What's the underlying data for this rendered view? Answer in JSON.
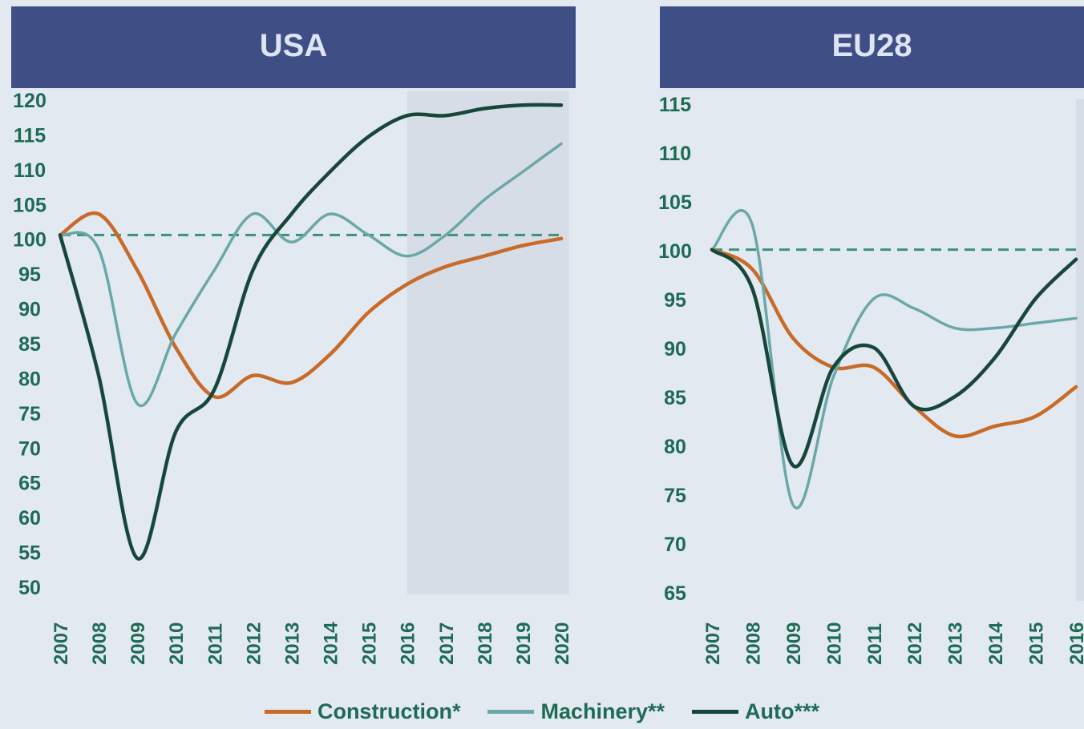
{
  "colors": {
    "background": "#e3e9f1",
    "header_bg": "#3f4f86",
    "header_text": "#dfe4f5",
    "tick_text": "#1e6b55",
    "forecast_shade": "#d7dde7",
    "baseline": "#3f8f7e"
  },
  "legend": [
    {
      "label": "Construction*",
      "color": "#c86a28"
    },
    {
      "label": "Machinery**",
      "color": "#6aa8a8"
    },
    {
      "label": "Auto***",
      "color": "#17463a"
    }
  ],
  "chart_data": [
    {
      "type": "line",
      "title": "USA",
      "x": [
        2007,
        2008,
        2009,
        2010,
        2011,
        2012,
        2013,
        2014,
        2015,
        2016,
        2017,
        2018,
        2019,
        2020
      ],
      "xticks": [
        "2007",
        "2008",
        "2009",
        "2010",
        "2011",
        "2012",
        "2013",
        "2014",
        "2015",
        "2016",
        "2017",
        "2018",
        "2019",
        "2020"
      ],
      "yticks": [
        "120",
        "115",
        "110",
        "105",
        "100",
        "95",
        "90",
        "85",
        "80",
        "75",
        "70",
        "65",
        "60",
        "55",
        "50"
      ],
      "ylim": [
        50,
        120
      ],
      "baseline": 100,
      "forecast_start": 2016,
      "series": [
        {
          "name": "Construction*",
          "color": "#c86a28",
          "values": [
            100,
            103,
            95,
            84,
            77,
            80,
            79,
            83,
            89,
            93,
            95.5,
            97,
            98.5,
            99.5
          ]
        },
        {
          "name": "Machinery**",
          "color": "#6aa8a8",
          "values": [
            100,
            98,
            76,
            86,
            95,
            103,
            99,
            103,
            100,
            97,
            100,
            105,
            109,
            113
          ]
        },
        {
          "name": "Auto***",
          "color": "#17463a",
          "values": [
            100,
            80,
            54,
            72,
            78,
            95,
            103,
            109,
            114,
            117,
            117,
            118,
            118.5,
            118.5
          ]
        }
      ]
    },
    {
      "type": "line",
      "title": "EU28",
      "x": [
        2007,
        2008,
        2009,
        2010,
        2011,
        2012,
        2013,
        2014,
        2015,
        2016
      ],
      "xticks": [
        "2007",
        "2008",
        "2009",
        "2010",
        "2011",
        "2012",
        "2013",
        "2014",
        "2015",
        "2016"
      ],
      "yticks": [
        "115",
        "110",
        "105",
        "100",
        "95",
        "90",
        "85",
        "80",
        "75",
        "70",
        "65"
      ],
      "ylim": [
        65,
        115
      ],
      "baseline": 100,
      "forecast_start": 2016,
      "series": [
        {
          "name": "Construction*",
          "color": "#c86a28",
          "values": [
            100,
            98,
            91,
            88,
            88,
            84,
            81,
            82,
            83,
            86
          ]
        },
        {
          "name": "Machinery**",
          "color": "#6aa8a8",
          "values": [
            100,
            102.5,
            74,
            87,
            95,
            94,
            92,
            92,
            92.5,
            93
          ]
        },
        {
          "name": "Auto***",
          "color": "#17463a",
          "values": [
            100,
            96,
            78,
            88,
            90,
            84,
            85,
            89,
            95,
            99
          ]
        }
      ]
    }
  ]
}
